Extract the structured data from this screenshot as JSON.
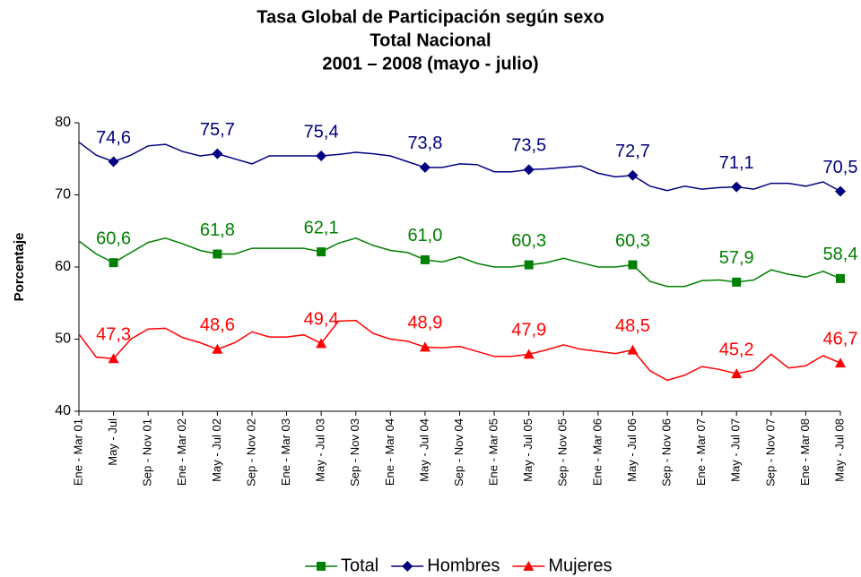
{
  "chart_data": {
    "type": "line",
    "title": [
      "Tasa Global de Participación según sexo",
      "Total Nacional",
      "2001 – 2008 (mayo - julio)"
    ],
    "y_label": "Porcentaje",
    "categories": [
      "Ene - Mar 01",
      null,
      "May - Jul",
      null,
      "Sep - Nov 01",
      null,
      "Ene - Mar 02",
      null,
      "May - Jul 02",
      null,
      "Sep - Nov 02",
      null,
      "Ene - Mar 03",
      null,
      "May - Jul 03",
      null,
      "Sep - Nov 03",
      null,
      "Ene - Mar 04",
      null,
      "May - Jul 04",
      null,
      "Sep - Nov 04",
      null,
      "Ene - Mar 05",
      null,
      "May - Jul 05",
      null,
      "Sep - Nov 05",
      null,
      "Ene - Mar 06",
      null,
      "May - Jul 06",
      null,
      "Sep - Nov 06",
      null,
      "Ene - Mar 07",
      null,
      "May - Jul 07",
      null,
      "Sep - Nov 07",
      null,
      "Ene - Mar 08",
      null,
      "May - Jul 08"
    ],
    "ylim": [
      40,
      80
    ],
    "yticks": [
      40,
      50,
      60,
      70,
      80
    ],
    "grid": false,
    "legend": "bottom",
    "series": [
      {
        "name": "Total",
        "color": "#008000",
        "marker": "square",
        "values": [
          63.6,
          61.8,
          60.6,
          62.0,
          63.4,
          64.0,
          63.2,
          62.3,
          61.8,
          61.8,
          62.6,
          62.6,
          62.6,
          62.6,
          62.1,
          63.3,
          64.0,
          63.0,
          62.3,
          62.0,
          61.0,
          60.7,
          61.4,
          60.5,
          60.0,
          60.0,
          60.3,
          60.6,
          61.2,
          60.6,
          60.0,
          60.0,
          60.3,
          58.0,
          57.3,
          57.3,
          58.1,
          58.2,
          57.9,
          58.2,
          59.6,
          59.0,
          58.6,
          59.4,
          58.4
        ],
        "value_labels": [
          null,
          null,
          "60,6",
          null,
          null,
          null,
          null,
          null,
          "61,8",
          null,
          null,
          null,
          null,
          null,
          "62,1",
          null,
          null,
          null,
          null,
          null,
          "61,0",
          null,
          null,
          null,
          null,
          null,
          "60,3",
          null,
          null,
          null,
          null,
          null,
          "60,3",
          null,
          null,
          null,
          null,
          null,
          "57,9",
          null,
          null,
          null,
          null,
          null,
          "58,4"
        ]
      },
      {
        "name": "Hombres",
        "color": "#000080",
        "marker": "diamond",
        "values": [
          77.3,
          75.5,
          74.6,
          75.5,
          76.8,
          77.0,
          76.0,
          75.4,
          75.7,
          75.0,
          74.3,
          75.4,
          75.4,
          75.4,
          75.4,
          75.6,
          75.9,
          75.7,
          75.4,
          74.6,
          73.8,
          73.8,
          74.3,
          74.2,
          73.2,
          73.2,
          73.5,
          73.6,
          73.8,
          74.0,
          73.0,
          72.5,
          72.7,
          71.2,
          70.6,
          71.2,
          70.8,
          71.0,
          71.1,
          70.8,
          71.6,
          71.6,
          71.2,
          71.8,
          70.5
        ],
        "value_labels": [
          null,
          null,
          "74,6",
          null,
          null,
          null,
          null,
          null,
          "75,7",
          null,
          null,
          null,
          null,
          null,
          "75,4",
          null,
          null,
          null,
          null,
          null,
          "73,8",
          null,
          null,
          null,
          null,
          null,
          "73,5",
          null,
          null,
          null,
          null,
          null,
          "72,7",
          null,
          null,
          null,
          null,
          null,
          "71,1",
          null,
          null,
          null,
          null,
          null,
          "70,5"
        ]
      },
      {
        "name": "Mujeres",
        "color": "#ff0000",
        "marker": "triangle",
        "values": [
          50.7,
          47.5,
          47.3,
          50.0,
          51.4,
          51.5,
          50.2,
          49.5,
          48.6,
          49.5,
          51.0,
          50.3,
          50.3,
          50.6,
          49.4,
          52.5,
          52.6,
          50.8,
          50.0,
          49.7,
          48.9,
          48.8,
          49.0,
          48.3,
          47.6,
          47.6,
          47.9,
          48.5,
          49.2,
          48.6,
          48.3,
          48.0,
          48.5,
          45.6,
          44.3,
          45.0,
          46.2,
          45.8,
          45.2,
          45.7,
          47.9,
          46.0,
          46.3,
          47.7,
          46.7
        ],
        "value_labels": [
          null,
          null,
          "47,3",
          null,
          null,
          null,
          null,
          null,
          "48,6",
          null,
          null,
          null,
          null,
          null,
          "49,4",
          null,
          null,
          null,
          null,
          null,
          "48,9",
          null,
          null,
          null,
          null,
          null,
          "47,9",
          null,
          null,
          null,
          null,
          null,
          "48,5",
          null,
          null,
          null,
          null,
          null,
          "45,2",
          null,
          null,
          null,
          null,
          null,
          "46,7"
        ]
      }
    ]
  }
}
